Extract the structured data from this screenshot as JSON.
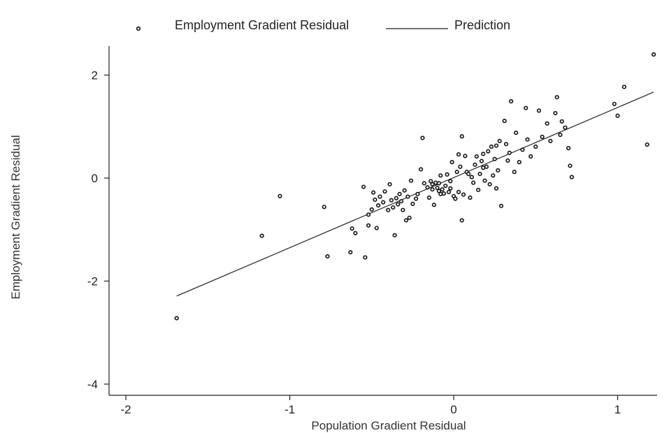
{
  "chart_data": {
    "type": "scatter",
    "xlabel": "Population Gradient Residual",
    "ylabel": "Employment Gradient Residual",
    "xlim": [
      -2.0,
      1.3
    ],
    "ylim": [
      -4.2,
      2.6
    ],
    "x_ticks": [
      -2,
      -1,
      0,
      1
    ],
    "y_ticks": [
      2,
      0,
      -2,
      -4
    ],
    "grid": false,
    "legend_position": "top",
    "series": [
      {
        "name": "Employment Gradient Residual",
        "type": "scatter",
        "marker": "open-circle",
        "points": [
          [
            -1.69,
            -2.72
          ],
          [
            -1.17,
            -1.12
          ],
          [
            -1.06,
            -0.35
          ],
          [
            -0.79,
            -0.56
          ],
          [
            -0.77,
            -1.52
          ],
          [
            -0.63,
            -1.44
          ],
          [
            -0.6,
            -1.07
          ],
          [
            -0.54,
            -1.54
          ],
          [
            -0.55,
            -0.17
          ],
          [
            -0.52,
            -0.92
          ],
          [
            -0.52,
            -0.71
          ],
          [
            -0.5,
            -0.61
          ],
          [
            -0.49,
            -0.28
          ],
          [
            -0.48,
            -0.42
          ],
          [
            -0.47,
            -0.97
          ],
          [
            -0.46,
            -0.53
          ],
          [
            -0.45,
            -0.36
          ],
          [
            -0.43,
            -0.47
          ],
          [
            -0.42,
            -0.26
          ],
          [
            -0.4,
            -0.62
          ],
          [
            -0.39,
            -0.12
          ],
          [
            -0.38,
            -0.43
          ],
          [
            -0.37,
            -0.57
          ],
          [
            -0.36,
            -1.11
          ],
          [
            -0.35,
            -0.39
          ],
          [
            -0.34,
            -0.51
          ],
          [
            -0.33,
            -0.31
          ],
          [
            -0.32,
            -0.45
          ],
          [
            -0.31,
            -0.62
          ],
          [
            -0.3,
            -0.24
          ],
          [
            -0.29,
            -0.82
          ],
          [
            -0.28,
            -0.36
          ],
          [
            -0.27,
            -0.77
          ],
          [
            -0.26,
            -0.05
          ],
          [
            -0.25,
            -0.5
          ],
          [
            -0.23,
            -0.4
          ],
          [
            -0.22,
            -0.31
          ],
          [
            -0.2,
            0.17
          ],
          [
            -0.19,
            0.78
          ],
          [
            -0.18,
            -0.1
          ],
          [
            -0.16,
            -0.18
          ],
          [
            -0.15,
            -0.38
          ],
          [
            -0.14,
            -0.06
          ],
          [
            -0.13,
            -0.22
          ],
          [
            -0.13,
            -0.12
          ],
          [
            -0.12,
            -0.52
          ],
          [
            -0.11,
            -0.09
          ],
          [
            -0.1,
            -0.19
          ],
          [
            -0.09,
            -0.25
          ],
          [
            -0.09,
            -0.1
          ],
          [
            -0.08,
            0.05
          ],
          [
            -0.07,
            -0.22
          ],
          [
            -0.06,
            -0.3
          ],
          [
            -0.05,
            -0.15
          ],
          [
            -0.04,
            0.07
          ],
          [
            -0.03,
            -0.27
          ],
          [
            -0.02,
            -0.2
          ],
          [
            -0.01,
            0.31
          ],
          [
            0.0,
            -0.35
          ],
          [
            0.01,
            -0.4
          ],
          [
            0.02,
            0.12
          ],
          [
            0.03,
            -0.27
          ],
          [
            0.03,
            0.46
          ],
          [
            0.04,
            0.22
          ],
          [
            0.05,
            0.81
          ],
          [
            0.06,
            -0.32
          ],
          [
            0.07,
            0.43
          ],
          [
            0.08,
            0.12
          ],
          [
            0.09,
            0.08
          ],
          [
            0.1,
            -0.38
          ],
          [
            0.12,
            -0.09
          ],
          [
            0.13,
            0.26
          ],
          [
            0.14,
            0.42
          ],
          [
            0.15,
            -0.23
          ],
          [
            0.16,
            0.08
          ],
          [
            0.17,
            0.33
          ],
          [
            0.18,
            0.47
          ],
          [
            0.19,
            -0.05
          ],
          [
            0.2,
            0.22
          ],
          [
            0.21,
            0.52
          ],
          [
            0.22,
            -0.12
          ],
          [
            0.23,
            0.61
          ],
          [
            0.24,
            0.05
          ],
          [
            0.25,
            0.37
          ],
          [
            0.26,
            -0.2
          ],
          [
            0.27,
            0.15
          ],
          [
            0.28,
            0.72
          ],
          [
            0.29,
            -0.54
          ],
          [
            0.31,
            1.11
          ],
          [
            0.32,
            0.66
          ],
          [
            0.33,
            0.34
          ],
          [
            0.34,
            0.49
          ],
          [
            0.35,
            1.49
          ],
          [
            0.37,
            0.12
          ],
          [
            0.38,
            0.88
          ],
          [
            0.4,
            0.31
          ],
          [
            0.42,
            0.55
          ],
          [
            0.44,
            1.36
          ],
          [
            0.45,
            0.75
          ],
          [
            0.47,
            0.42
          ],
          [
            0.5,
            0.61
          ],
          [
            0.52,
            1.31
          ],
          [
            0.54,
            0.8
          ],
          [
            0.57,
            1.06
          ],
          [
            0.59,
            0.72
          ],
          [
            0.62,
            1.26
          ],
          [
            0.63,
            1.57
          ],
          [
            0.65,
            0.84
          ],
          [
            0.66,
            1.1
          ],
          [
            0.68,
            0.98
          ],
          [
            0.7,
            0.58
          ],
          [
            0.71,
            0.24
          ],
          [
            0.72,
            0.02
          ],
          [
            0.98,
            1.44
          ],
          [
            1.0,
            1.21
          ],
          [
            1.04,
            1.77
          ],
          [
            1.18,
            0.65
          ],
          [
            1.22,
            2.4
          ],
          [
            -0.62,
            -0.98
          ],
          [
            0.05,
            -0.82
          ],
          [
            -0.02,
            -0.06
          ],
          [
            0.11,
            0.02
          ],
          [
            -0.08,
            -0.31
          ],
          [
            0.18,
            0.2
          ],
          [
            0.26,
            0.63
          ]
        ]
      },
      {
        "name": "Prediction",
        "type": "line",
        "points": [
          [
            -1.69,
            -2.29
          ],
          [
            1.22,
            1.67
          ]
        ]
      }
    ]
  }
}
